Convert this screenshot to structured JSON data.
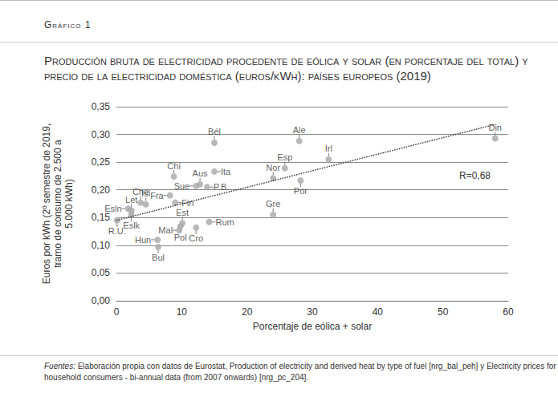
{
  "chart_data": {
    "type": "scatter",
    "header": "Gráfico 1",
    "title": "Producción bruta de electricidad procedente de eólica y solar (en porcentaje del total) y precio de la electricidad doméstica (euros/kWh): países europeos (2019)",
    "x_label": "Porcentaje de eólica + solar",
    "y_label": "Euros por kWh (2º semestre de 2019,\ntramo de consumo de 2.500 a\n5.000 kWh)",
    "annotation": "R=0,68",
    "source_label": "Fuentes:",
    "source": "Elaboración propia con datos de Eurostat, Production of electricity and derived heat by type of fuel [nrg_bal_peh] y Electricity prices for household consumers - bi-annual data (from 2007 onwards) [nrg_pc_204].",
    "color": "#a6a6a6",
    "grid": "y",
    "data_labels": true,
    "points": [
      {
        "label": "Din",
        "x": 58,
        "y": 0.293
      },
      {
        "label": "Irl",
        "x": 32.5,
        "y": 0.255
      },
      {
        "label": "Ale",
        "x": 28,
        "y": 0.288
      },
      {
        "label": "Por",
        "x": 28.2,
        "y": 0.217
      },
      {
        "label": "Esp",
        "x": 25.8,
        "y": 0.239
      },
      {
        "label": "Nor",
        "x": 24,
        "y": 0.221
      },
      {
        "label": "Gre",
        "x": 24,
        "y": 0.155
      },
      {
        "label": "Bél",
        "x": 15,
        "y": 0.285
      },
      {
        "label": "Ita",
        "x": 15,
        "y": 0.233
      },
      {
        "label": "Aus",
        "x": 12.8,
        "y": 0.21
      },
      {
        "label": "Sue",
        "x": 12.2,
        "y": 0.207
      },
      {
        "label": "P.B.",
        "x": 13.9,
        "y": 0.205
      },
      {
        "label": "Rum",
        "x": 14.2,
        "y": 0.142
      },
      {
        "label": "Cro",
        "x": 12.2,
        "y": 0.132
      },
      {
        "label": "Est",
        "x": 10.1,
        "y": 0.14
      },
      {
        "label": "Pol",
        "x": 9.8,
        "y": 0.134
      },
      {
        "label": "Mal",
        "x": 9.6,
        "y": 0.127
      },
      {
        "label": "Hun",
        "x": 6.3,
        "y": 0.11
      },
      {
        "label": "Bul",
        "x": 6.4,
        "y": 0.097
      },
      {
        "label": "Fin",
        "x": 9,
        "y": 0.177
      },
      {
        "label": "Fra",
        "x": 8.2,
        "y": 0.19
      },
      {
        "label": "Chi",
        "x": 8.8,
        "y": 0.224
      },
      {
        "label": "Che",
        "x": 3.7,
        "y": 0.177
      },
      {
        "label": "Isl",
        "x": 4.5,
        "y": 0.174
      },
      {
        "label": "Let",
        "x": 2.3,
        "y": 0.163
      },
      {
        "label": "Esln",
        "x": 1.8,
        "y": 0.166
      },
      {
        "label": "Eslk",
        "x": 2.3,
        "y": 0.155
      },
      {
        "label": "R.U.",
        "x": 0.1,
        "y": 0.145
      }
    ],
    "trendline": {
      "x": [
        0,
        58
      ],
      "y": [
        0.145,
        0.318
      ],
      "line_style": "dotted",
      "color": "#333333"
    },
    "xlim": [
      0,
      60
    ],
    "xticks": [
      0,
      10,
      20,
      30,
      40,
      50,
      60
    ],
    "ylim": [
      0,
      0.35
    ],
    "yticks": [
      {
        "value": 0,
        "label": "0,00"
      },
      {
        "value": 0.05,
        "label": "0,05"
      },
      {
        "value": 0.1,
        "label": "0,10"
      },
      {
        "value": 0.15,
        "label": "0,15"
      },
      {
        "value": 0.2,
        "label": "0,20"
      },
      {
        "value": 0.25,
        "label": "0,25"
      },
      {
        "value": 0.3,
        "label": "0,30"
      },
      {
        "value": 0.35,
        "label": "0,35"
      }
    ]
  }
}
